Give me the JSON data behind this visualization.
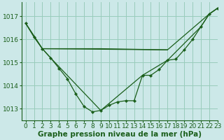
{
  "title": "Graphe pression niveau de la mer (hPa)",
  "background_color": "#cce8e8",
  "grid_color": "#99ccbb",
  "line_color": "#1a5e1a",
  "xlim": [
    -0.5,
    23
  ],
  "ylim": [
    1012.5,
    1017.6
  ],
  "yticks": [
    1013,
    1014,
    1015,
    1016,
    1017
  ],
  "xticks": [
    0,
    1,
    2,
    3,
    4,
    5,
    6,
    7,
    8,
    9,
    10,
    11,
    12,
    13,
    14,
    15,
    16,
    17,
    18,
    19,
    20,
    21,
    22,
    23
  ],
  "series1_x": [
    0,
    1,
    2,
    3,
    4,
    5,
    6,
    7,
    8,
    9,
    10,
    11,
    12,
    13,
    14,
    15,
    16,
    17,
    18,
    19,
    20,
    21,
    22,
    23
  ],
  "series1_y": [
    1016.7,
    1016.1,
    1015.6,
    1015.2,
    1014.75,
    1014.3,
    1013.65,
    1013.1,
    1012.87,
    1012.93,
    1013.15,
    1013.3,
    1013.35,
    1013.35,
    1014.45,
    1014.45,
    1014.7,
    1015.1,
    1015.15,
    1015.55,
    1016.0,
    1016.55,
    1017.1,
    1017.35
  ],
  "series2_x": [
    0,
    2,
    3,
    9,
    14,
    17,
    21,
    22,
    23
  ],
  "series2_y": [
    1016.7,
    1015.6,
    1015.2,
    1012.93,
    1014.45,
    1015.1,
    1016.55,
    1017.1,
    1017.35
  ],
  "series3_x": [
    0,
    2,
    17,
    22,
    23
  ],
  "series3_y": [
    1016.7,
    1015.6,
    1015.55,
    1017.1,
    1017.35
  ],
  "series4_x": [
    2,
    9,
    17
  ],
  "series4_y": [
    1015.6,
    1015.6,
    1015.55
  ],
  "font_color": "#1a5e1a",
  "tick_fontsize": 6.5,
  "label_fontsize": 7.5
}
